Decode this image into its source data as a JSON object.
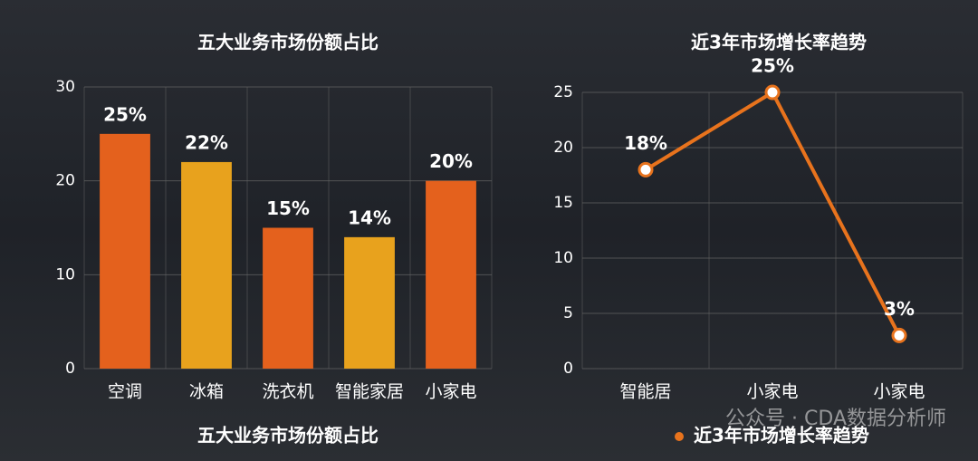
{
  "chart_data": [
    {
      "type": "bar",
      "title": "五大业务市场份额占比",
      "categories": [
        "空调",
        "冰箱",
        "洗衣机",
        "智能家居",
        "小家电"
      ],
      "series": [
        {
          "name": "五大业务市场份额占比",
          "colors": [
            "#e4611d",
            "#e8a21d",
            "#e4611d",
            "#e8a21d",
            "#e4611d"
          ],
          "values": [
            25,
            22,
            15,
            14,
            20
          ],
          "value_labels": [
            "25%",
            "22%",
            "15%",
            "14%",
            "20%"
          ]
        }
      ],
      "ylim": [
        0,
        30
      ],
      "yticks": [
        0,
        10,
        20,
        30
      ],
      "grid": true
    },
    {
      "type": "line",
      "title": "近3年市场增长率趋势",
      "categories": [
        "智能居",
        "小家电",
        "小家电"
      ],
      "series": [
        {
          "name": "近3年市场增长率趋势",
          "color": "#e8731d",
          "values": [
            18,
            25,
            3
          ],
          "value_labels": [
            "18%",
            "25%",
            "3%"
          ]
        }
      ],
      "ylim": [
        0,
        25
      ],
      "yticks": [
        0,
        5,
        10,
        15,
        20,
        25
      ],
      "grid": true
    }
  ],
  "watermark": "公众号 · CDA数据分析师"
}
